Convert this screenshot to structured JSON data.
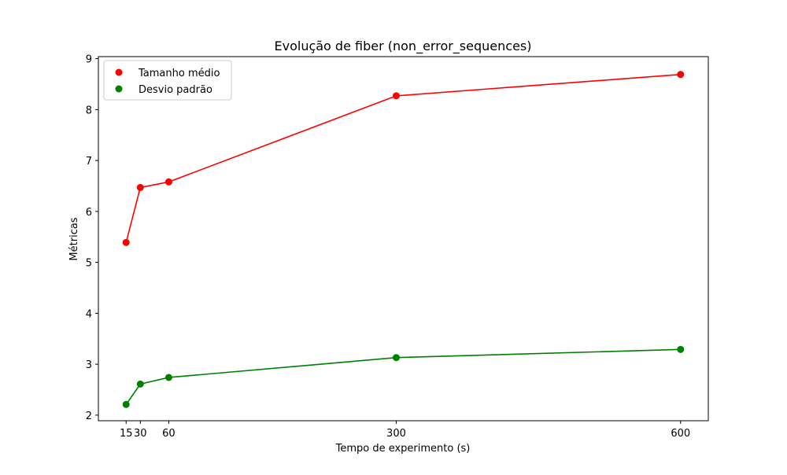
{
  "chart_data": {
    "type": "line",
    "title": "Evolução de fiber (non_error_sequences)",
    "xlabel": "Tempo de experimento (s)",
    "ylabel": "Métricas",
    "x": [
      15,
      30,
      60,
      300,
      600
    ],
    "x_tick_labels": [
      "15",
      "30",
      "60",
      "300",
      "600"
    ],
    "y_ticks": [
      2,
      3,
      4,
      5,
      6,
      7,
      8,
      9
    ],
    "y_tick_labels": [
      "2",
      "3",
      "4",
      "5",
      "6",
      "7",
      "8",
      "9"
    ],
    "xlim": [
      -14.25,
      629.25
    ],
    "ylim": [
      1.89,
      9.04
    ],
    "grid": false,
    "legend_position": "upper-left",
    "series": [
      {
        "name": "Tamanho médio",
        "color": "#ff0000",
        "values": [
          5.39,
          6.47,
          6.58,
          8.27,
          8.69
        ]
      },
      {
        "name": "Desvio padrão",
        "color": "#008000",
        "values": [
          2.21,
          2.61,
          2.74,
          3.13,
          3.29
        ]
      }
    ]
  }
}
